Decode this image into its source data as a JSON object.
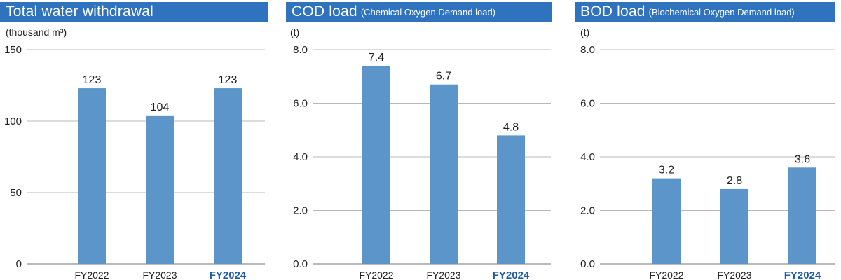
{
  "accent": "#2f72bd",
  "bar_color": "#5b95c9",
  "highlight_color": "#1f5ca8",
  "chart_data": [
    {
      "type": "bar",
      "title": "Total water withdrawal",
      "subtitle": "",
      "ylabel": "(thousand m³)",
      "xlabel": "",
      "categories": [
        "FY2022",
        "FY2023",
        "FY2024"
      ],
      "highlight": "FY2024",
      "values": [
        123,
        104,
        123
      ],
      "labels": [
        "123",
        "104",
        "123"
      ],
      "ylim": [
        0,
        150
      ],
      "ticks": [
        0,
        50,
        100,
        150
      ],
      "tick_labels": [
        "0",
        "50",
        "100",
        "150"
      ],
      "grid": true
    },
    {
      "type": "bar",
      "title": "COD load",
      "subtitle": "(Chemical Oxygen Demand load)",
      "ylabel": "(t)",
      "xlabel": "",
      "categories": [
        "FY2022",
        "FY2023",
        "FY2024"
      ],
      "highlight": "FY2024",
      "values": [
        7.4,
        6.7,
        4.8
      ],
      "labels": [
        "7.4",
        "6.7",
        "4.8"
      ],
      "ylim": [
        0,
        8
      ],
      "ticks": [
        0,
        2,
        4,
        6,
        8
      ],
      "tick_labels": [
        "0.0",
        "2.0",
        "4.0",
        "6.0",
        "8.0"
      ],
      "grid": true
    },
    {
      "type": "bar",
      "title": "BOD load",
      "subtitle": "(Biochemical Oxygen Demand load)",
      "ylabel": "(t)",
      "xlabel": "",
      "categories": [
        "FY2022",
        "FY2023",
        "FY2024"
      ],
      "highlight": "FY2024",
      "values": [
        3.2,
        2.8,
        3.6
      ],
      "labels": [
        "3.2",
        "2.8",
        "3.6"
      ],
      "ylim": [
        0,
        8
      ],
      "ticks": [
        0,
        2,
        4,
        6,
        8
      ],
      "tick_labels": [
        "0.0",
        "2.0",
        "4.0",
        "6.0",
        "8.0"
      ],
      "grid": true
    }
  ]
}
